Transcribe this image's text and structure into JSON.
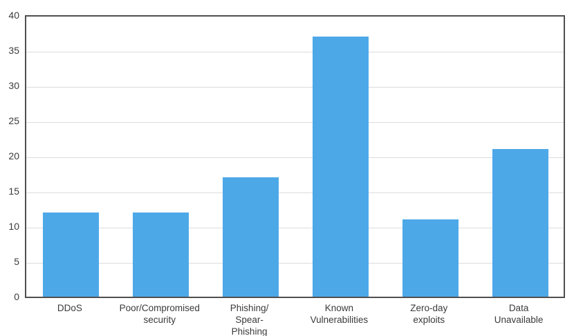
{
  "chart_data": {
    "type": "bar",
    "categories": [
      "DDoS",
      "Poor/Compromised\nsecurity",
      "Phishing/\nSpear-\nPhishing",
      "Known\nVulnerabilities",
      "Zero-day\nexploits",
      "Data\nUnavailable"
    ],
    "values": [
      12,
      12,
      17,
      37,
      11,
      21
    ],
    "title": "",
    "xlabel": "",
    "ylabel": "",
    "ylim": [
      0,
      40
    ],
    "ytick_step": 5,
    "yticks": [
      0,
      5,
      10,
      15,
      20,
      25,
      30,
      35,
      40
    ],
    "grid": true,
    "legend": null,
    "colors": {
      "bar": "#4da8e8",
      "frame": "#4f4f4f",
      "gridline": "#dcdcdc",
      "text": "#3a3a3a",
      "background": "#ffffff"
    }
  }
}
